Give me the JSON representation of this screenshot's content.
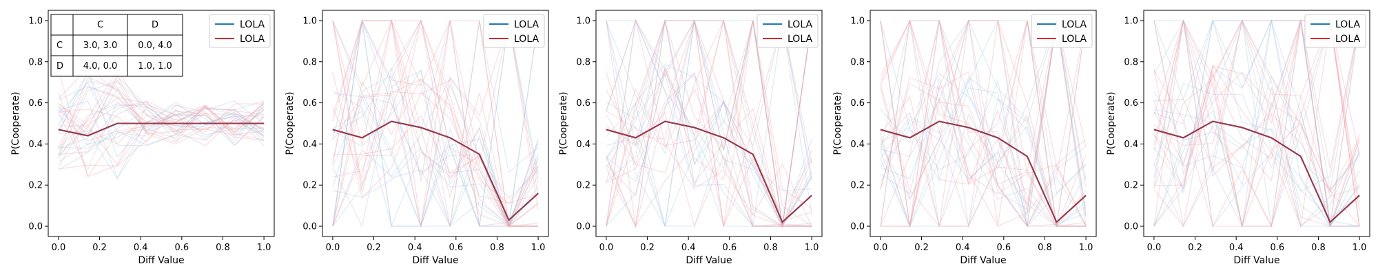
{
  "colors": {
    "blue": "#1f77b4",
    "red": "#d62728",
    "mean": "#9b3a4c",
    "blue_faint": "#a9c9e6",
    "red_faint": "#f1a7ab"
  },
  "payoff_table": {
    "headers": [
      "",
      "C",
      "D"
    ],
    "rows": [
      [
        "C",
        "3.0, 3.0",
        "0.0, 4.0"
      ],
      [
        "D",
        "4.0, 0.0",
        "1.0, 1.0"
      ]
    ]
  },
  "chart_data": [
    {
      "type": "line",
      "title": "",
      "xlabel": "Diff Value",
      "ylabel": "P(Cooperate)",
      "xlim": [
        -0.05,
        1.05
      ],
      "ylim": [
        -0.05,
        1.05
      ],
      "xticks": [
        "0.0",
        "0.2",
        "0.4",
        "0.6",
        "0.8",
        "1.0"
      ],
      "yticks": [
        "0.0",
        "0.2",
        "0.4",
        "0.6",
        "0.8",
        "1.0"
      ],
      "grid": false,
      "legend": {
        "placement": "top-right",
        "entries": [
          "LOLA",
          "LOLA"
        ]
      },
      "x": [
        0.0,
        0.143,
        0.286,
        0.429,
        0.571,
        0.714,
        0.857,
        1.0
      ],
      "series": [
        {
          "name": "LOLA",
          "color": "blue",
          "values": [
            0.47,
            0.44,
            0.5,
            0.5,
            0.5,
            0.5,
            0.5,
            0.5
          ]
        },
        {
          "name": "LOLA",
          "color": "red",
          "values": [
            0.47,
            0.44,
            0.5,
            0.5,
            0.5,
            0.5,
            0.5,
            0.5
          ]
        }
      ]
    },
    {
      "type": "line",
      "title": "",
      "xlabel": "Diff Value",
      "ylabel": "P(Cooperate)",
      "xlim": [
        -0.05,
        1.05
      ],
      "ylim": [
        -0.05,
        1.05
      ],
      "xticks": [
        "0.0",
        "0.2",
        "0.4",
        "0.6",
        "0.8",
        "1.0"
      ],
      "yticks": [
        "0.0",
        "0.2",
        "0.4",
        "0.6",
        "0.8",
        "1.0"
      ],
      "grid": false,
      "legend": {
        "placement": "top-right",
        "entries": [
          "LOLA",
          "LOLA"
        ]
      },
      "x": [
        0.0,
        0.143,
        0.286,
        0.429,
        0.571,
        0.714,
        0.857,
        1.0
      ],
      "series": [
        {
          "name": "LOLA",
          "color": "blue",
          "values": [
            0.47,
            0.43,
            0.51,
            0.48,
            0.43,
            0.35,
            0.03,
            0.16
          ]
        },
        {
          "name": "LOLA",
          "color": "red",
          "values": [
            0.47,
            0.43,
            0.51,
            0.48,
            0.43,
            0.35,
            0.03,
            0.16
          ]
        }
      ]
    },
    {
      "type": "line",
      "title": "",
      "xlabel": "Diff Value",
      "ylabel": "P(Cooperate)",
      "xlim": [
        -0.05,
        1.05
      ],
      "ylim": [
        -0.05,
        1.05
      ],
      "xticks": [
        "0.0",
        "0.2",
        "0.4",
        "0.6",
        "0.8",
        "1.0"
      ],
      "yticks": [
        "0.0",
        "0.2",
        "0.4",
        "0.6",
        "0.8",
        "1.0"
      ],
      "grid": false,
      "legend": {
        "placement": "top-right",
        "entries": [
          "LOLA",
          "LOLA"
        ]
      },
      "x": [
        0.0,
        0.143,
        0.286,
        0.429,
        0.571,
        0.714,
        0.857,
        1.0
      ],
      "series": [
        {
          "name": "LOLA",
          "color": "blue",
          "values": [
            0.47,
            0.43,
            0.51,
            0.48,
            0.43,
            0.35,
            0.02,
            0.15
          ]
        },
        {
          "name": "LOLA",
          "color": "red",
          "values": [
            0.47,
            0.43,
            0.51,
            0.48,
            0.43,
            0.35,
            0.02,
            0.15
          ]
        }
      ]
    },
    {
      "type": "line",
      "title": "",
      "xlabel": "Diff Value",
      "ylabel": "P(Cooperate)",
      "xlim": [
        -0.05,
        1.05
      ],
      "ylim": [
        -0.05,
        1.05
      ],
      "xticks": [
        "0.0",
        "0.2",
        "0.4",
        "0.6",
        "0.8",
        "1.0"
      ],
      "yticks": [
        "0.0",
        "0.2",
        "0.4",
        "0.6",
        "0.8",
        "1.0"
      ],
      "grid": false,
      "legend": {
        "placement": "top-right",
        "entries": [
          "LOLA",
          "LOLA"
        ]
      },
      "x": [
        0.0,
        0.143,
        0.286,
        0.429,
        0.571,
        0.714,
        0.857,
        1.0
      ],
      "series": [
        {
          "name": "LOLA",
          "color": "blue",
          "values": [
            0.47,
            0.43,
            0.51,
            0.48,
            0.43,
            0.34,
            0.02,
            0.15
          ]
        },
        {
          "name": "LOLA",
          "color": "red",
          "values": [
            0.47,
            0.43,
            0.51,
            0.48,
            0.43,
            0.34,
            0.02,
            0.15
          ]
        }
      ]
    },
    {
      "type": "line",
      "title": "",
      "xlabel": "Diff Value",
      "ylabel": "P(Cooperate)",
      "xlim": [
        -0.05,
        1.05
      ],
      "ylim": [
        -0.05,
        1.05
      ],
      "xticks": [
        "0.0",
        "0.2",
        "0.4",
        "0.6",
        "0.8",
        "1.0"
      ],
      "yticks": [
        "0.0",
        "0.2",
        "0.4",
        "0.6",
        "0.8",
        "1.0"
      ],
      "grid": false,
      "legend": {
        "placement": "top-right",
        "entries": [
          "LOLA",
          "LOLA"
        ]
      },
      "x": [
        0.0,
        0.143,
        0.286,
        0.429,
        0.571,
        0.714,
        0.857,
        1.0
      ],
      "series": [
        {
          "name": "LOLA",
          "color": "blue",
          "values": [
            0.47,
            0.43,
            0.51,
            0.48,
            0.43,
            0.34,
            0.02,
            0.15
          ]
        },
        {
          "name": "LOLA",
          "color": "red",
          "values": [
            0.47,
            0.43,
            0.51,
            0.48,
            0.43,
            0.34,
            0.02,
            0.15
          ]
        }
      ]
    }
  ]
}
